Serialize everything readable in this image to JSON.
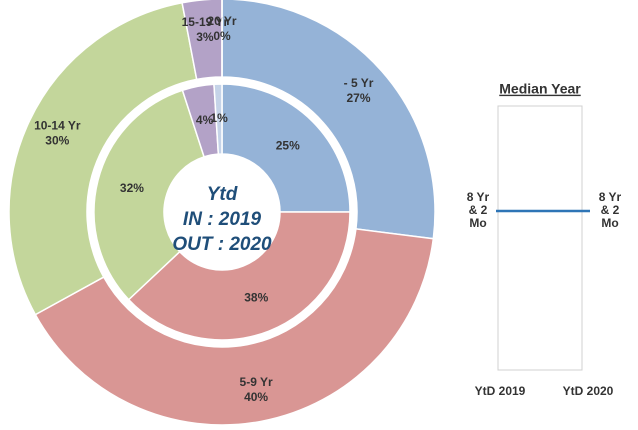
{
  "chart_data": [
    {
      "type": "donut",
      "annotations": [
        "Ytd",
        "IN : 2019",
        "OUT : 2020"
      ],
      "categories": [
        "- 5 Yr",
        "5-9 Yr",
        "10-14 Yr",
        "15-19 Yr",
        "20 Yr"
      ],
      "colors": [
        "#95b3d7",
        "#d99694",
        "#c3d69b",
        "#b3a2c7",
        "#c5d3e8"
      ],
      "series": [
        {
          "name": "IN : 2019",
          "values": [
            25,
            38,
            32,
            4,
            1
          ],
          "value_labels": [
            "25%",
            "38%",
            "32%",
            "4%",
            "1%"
          ]
        },
        {
          "name": "OUT : 2020",
          "values": [
            27,
            40,
            30,
            3,
            0
          ],
          "value_labels": [
            "27%",
            "40%",
            "30%",
            "3%",
            "0%"
          ]
        }
      ]
    },
    {
      "type": "line",
      "title": "Median Year",
      "categories": [
        "YtD 2019",
        "YtD 2020"
      ],
      "color": "#2e75b6",
      "values": [
        8.17,
        8.17
      ],
      "value_labels": [
        "8 Yr & 2 Mo",
        "8 Yr & 2 Mo"
      ]
    }
  ]
}
